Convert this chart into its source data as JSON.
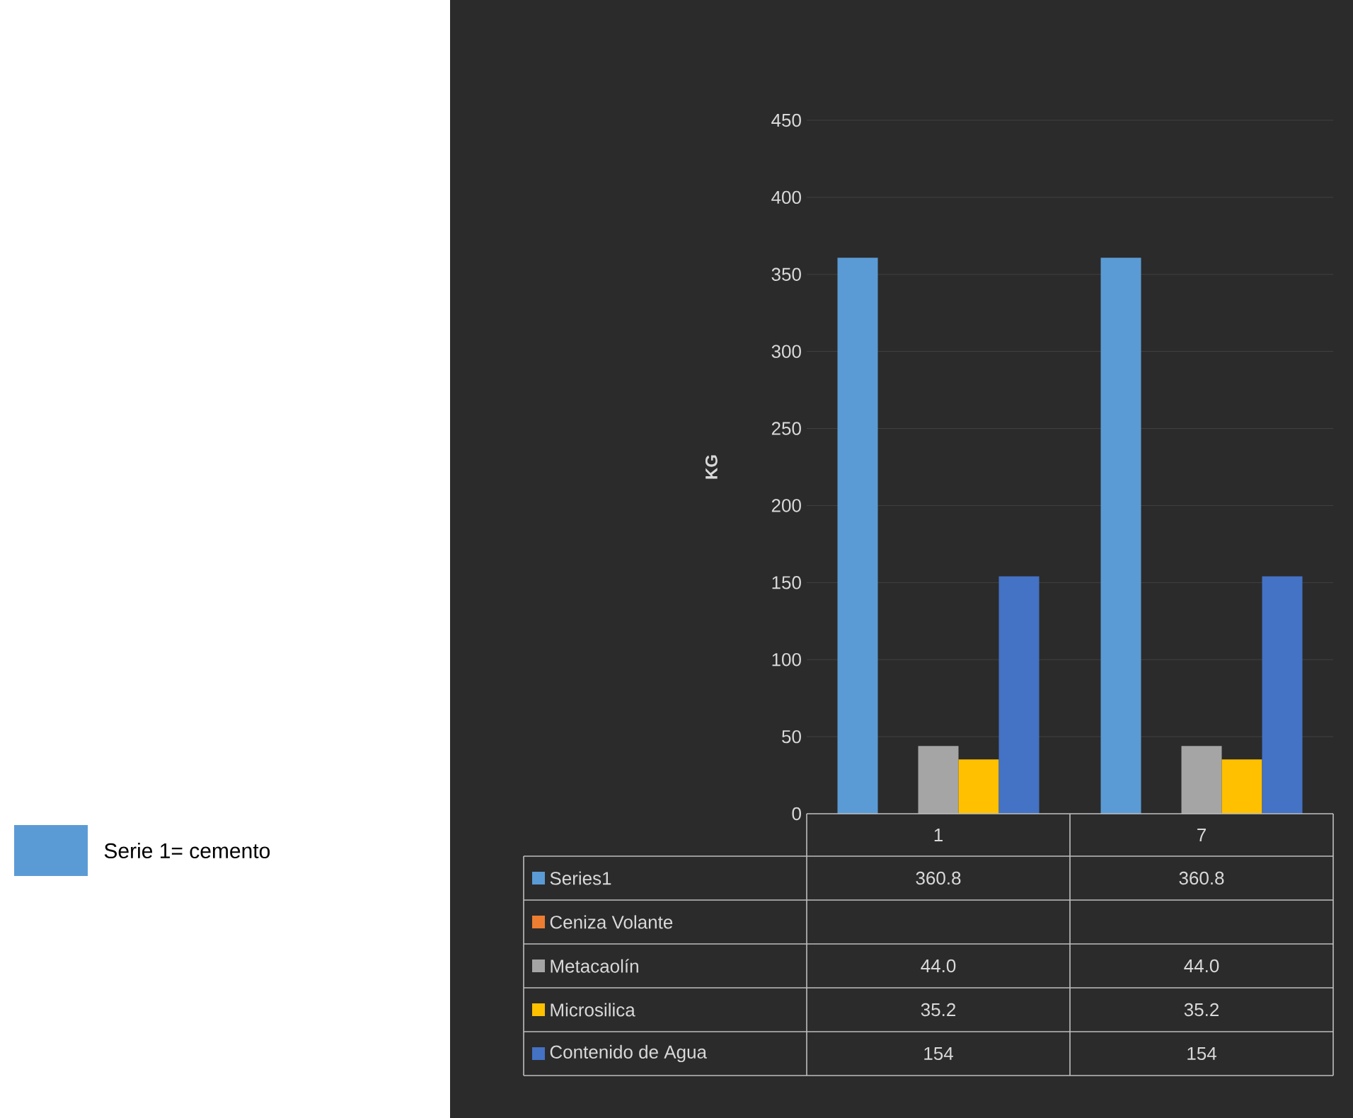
{
  "chart_data": {
    "type": "bar",
    "categories": [
      "1",
      "7"
    ],
    "ylabel": "KG",
    "ylim": [
      0,
      450
    ],
    "yticks": [
      0,
      50,
      100,
      150,
      200,
      250,
      300,
      350,
      400,
      450
    ],
    "grid": "y",
    "legend": "bottom",
    "series": [
      {
        "name": "Series1",
        "color": "#5b9bd5",
        "values": [
          360.8,
          360.8
        ],
        "value_labels": [
          "360.8",
          "360.8"
        ]
      },
      {
        "name": "Ceniza Volante",
        "color": "#ed7d31",
        "values": [
          null,
          null
        ],
        "value_labels": [
          null,
          null
        ]
      },
      {
        "name": "Metacaolín",
        "color": "#a5a5a5",
        "values": [
          44.0,
          44.0
        ],
        "value_labels": [
          "44.0",
          "44.0"
        ]
      },
      {
        "name": "Microsilica",
        "color": "#ffc000",
        "values": [
          35.2,
          35.2
        ],
        "value_labels": [
          "35.2",
          "35.2"
        ]
      },
      {
        "name": "Contenido de Agua",
        "color": "#4472c4",
        "values": [
          154,
          154
        ],
        "value_labels": [
          "154",
          "154"
        ]
      }
    ],
    "annotations": [
      "Serie 1= cemento"
    ]
  }
}
